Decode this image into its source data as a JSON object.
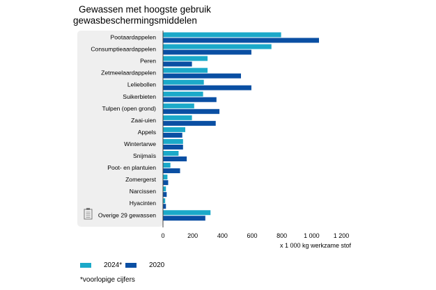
{
  "title_line1": "Gewassen met hoogste gebruik",
  "title_line2": "gewasbeschermingsmiddelen",
  "footnote": "*voorlopige cijfers",
  "colors": {
    "s2024": "#1ba9c9",
    "s2020": "#0a4fa3",
    "panel": "#efefef",
    "axis": "#444444"
  },
  "chart_data": {
    "type": "bar",
    "orientation": "horizontal",
    "categories": [
      "Pootaardappelen",
      "Consumptieaardappelen",
      "Peren",
      "Zetmeelaardappelen",
      "Leliebollen",
      "Suikerbieten",
      "Tulpen (open grond)",
      "Zaai-uien",
      "Appels",
      "Wintertarwe",
      "Snijmaïs",
      "Poot- en plantuien",
      "Zomergerst",
      "Narcissen",
      "Hyacinten",
      "Overige 29 gewassen"
    ],
    "series": [
      {
        "name": "2024*",
        "values": [
          795,
          730,
          300,
          300,
          275,
          270,
          210,
          195,
          150,
          135,
          105,
          50,
          30,
          20,
          15,
          320
        ]
      },
      {
        "name": "2020",
        "values": [
          1050,
          595,
          195,
          525,
          595,
          360,
          380,
          355,
          130,
          135,
          160,
          115,
          35,
          25,
          20,
          285
        ]
      }
    ],
    "xticks": [
      0,
      200,
      400,
      600,
      800,
      1000,
      1200
    ],
    "xtick_labels": [
      "0",
      "200",
      "400",
      "600",
      "800",
      "1 000",
      "1 200"
    ],
    "xlabel": "x 1 000 kg werkzame stof",
    "xlim": [
      0,
      1200
    ],
    "grid": false,
    "legend_position": "bottom-left"
  }
}
